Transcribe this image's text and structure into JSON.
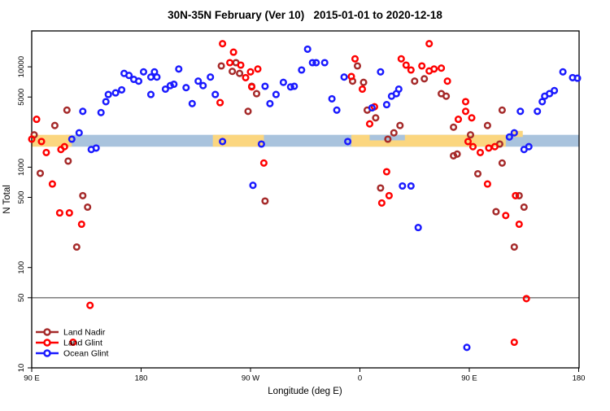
{
  "window": {
    "title": "30N-35N February (Ver 10)   2015-01-01 to 2020-12-18"
  },
  "chart_data": {
    "type": "scatter",
    "title": "30N-35N February (Ver 10)   2015-01-01 to 2020-12-18",
    "xlabel": "Longitude (deg E)",
    "ylabel": "N Total",
    "x_axis": {
      "range_deg_east": [
        90,
        540
      ],
      "ticks": [
        {
          "deg": 90,
          "label": "90 E"
        },
        {
          "deg": 180,
          "label": "180"
        },
        {
          "deg": 270,
          "label": "90 W"
        },
        {
          "deg": 360,
          "label": "0"
        },
        {
          "deg": 450,
          "label": "90 E"
        },
        {
          "deg": 540,
          "label": "180"
        }
      ]
    },
    "y_axis": {
      "scale": "log10",
      "range": [
        10,
        23000
      ],
      "ticks": [
        {
          "value": 10,
          "label": "10"
        },
        {
          "value": 50,
          "label": "50"
        },
        {
          "value": 100,
          "label": "100"
        },
        {
          "value": 500,
          "label": "500"
        },
        {
          "value": 1000,
          "label": "1000"
        },
        {
          "value": 5000,
          "label": "5000"
        },
        {
          "value": 10000,
          "label": "10000"
        }
      ]
    },
    "reference_line": {
      "value": 50,
      "color": "#3a3a3a"
    },
    "bands": {
      "default_value_range": [
        1600,
        2100
      ],
      "segments": [
        {
          "deg_range": [
            118,
            540
          ],
          "color": "#A9C3DD",
          "name": "ocean-band"
        },
        {
          "deg_range": [
            90,
            123
          ],
          "color": "#FBD67F",
          "name": "land-band"
        },
        {
          "deg_range": [
            239,
            281
          ],
          "color": "#FBD67F",
          "name": "land-band"
        },
        {
          "deg_range": [
            353,
            480
          ],
          "color": "#FBD67F",
          "name": "land-band"
        },
        {
          "deg_range": [
            486,
            494
          ],
          "color": "#FBD67F",
          "name": "land-band",
          "value_range": [
            2000,
            2300
          ]
        },
        {
          "deg_range": [
            368,
            397
          ],
          "color": "#A9C3DD",
          "name": "ocean-band",
          "value_range": [
            1850,
            2100
          ]
        }
      ]
    },
    "series": [
      {
        "name": "Land Nadir",
        "color": "#A52A2A",
        "points": [
          [
            92,
            2100
          ],
          [
            109,
            2600
          ],
          [
            119,
            3700
          ],
          [
            120,
            1150
          ],
          [
            97,
            870
          ],
          [
            132,
            520
          ],
          [
            136,
            400
          ],
          [
            127,
            160
          ],
          [
            246,
            10200
          ],
          [
            258,
            11000
          ],
          [
            255,
            9000
          ],
          [
            261,
            8600
          ],
          [
            271,
            6400
          ],
          [
            275,
            5400
          ],
          [
            268,
            3600
          ],
          [
            282,
            460
          ],
          [
            358,
            10200
          ],
          [
            354,
            7200
          ],
          [
            363,
            7000
          ],
          [
            366,
            3700
          ],
          [
            373,
            3100
          ],
          [
            393,
            2600
          ],
          [
            388,
            2200
          ],
          [
            383,
            1900
          ],
          [
            377,
            620
          ],
          [
            405,
            7200
          ],
          [
            413,
            7600
          ],
          [
            427,
            5400
          ],
          [
            431,
            5100
          ],
          [
            437,
            2500
          ],
          [
            451,
            2100
          ],
          [
            437,
            1300
          ],
          [
            440,
            1350
          ],
          [
            465,
            2600
          ],
          [
            475,
            1700
          ],
          [
            477,
            3700
          ],
          [
            477,
            1100
          ],
          [
            457,
            860
          ],
          [
            472,
            360
          ],
          [
            487,
            160
          ],
          [
            491,
            520
          ],
          [
            495,
            400
          ]
        ]
      },
      {
        "name": "Land Glint",
        "color": "#FF0000",
        "points": [
          [
            94,
            3000
          ],
          [
            90,
            1900
          ],
          [
            98,
            1800
          ],
          [
            102,
            1400
          ],
          [
            114,
            1500
          ],
          [
            117,
            1600
          ],
          [
            107,
            680
          ],
          [
            113,
            350
          ],
          [
            121,
            350
          ],
          [
            131,
            270
          ],
          [
            138,
            42
          ],
          [
            124,
            18
          ],
          [
            247,
            17000
          ],
          [
            245,
            4400
          ],
          [
            256,
            14000
          ],
          [
            253,
            11000
          ],
          [
            262,
            10400
          ],
          [
            266,
            7800
          ],
          [
            270,
            8900
          ],
          [
            276,
            9500
          ],
          [
            271,
            6300
          ],
          [
            281,
            1100
          ],
          [
            356,
            12000
          ],
          [
            353,
            8000
          ],
          [
            362,
            6000
          ],
          [
            372,
            4000
          ],
          [
            368,
            2700
          ],
          [
            394,
            12000
          ],
          [
            398,
            10400
          ],
          [
            402,
            9300
          ],
          [
            382,
            900
          ],
          [
            384,
            520
          ],
          [
            378,
            440
          ],
          [
            417,
            17000
          ],
          [
            411,
            10200
          ],
          [
            417,
            9100
          ],
          [
            421,
            9500
          ],
          [
            427,
            9700
          ],
          [
            432,
            7200
          ],
          [
            447,
            4500
          ],
          [
            447,
            3600
          ],
          [
            441,
            3000
          ],
          [
            452,
            3100
          ],
          [
            449,
            1800
          ],
          [
            453,
            1600
          ],
          [
            459,
            1400
          ],
          [
            466,
            1550
          ],
          [
            471,
            1600
          ],
          [
            465,
            680
          ],
          [
            480,
            330
          ],
          [
            488,
            520
          ],
          [
            487,
            18
          ],
          [
            491,
            270
          ],
          [
            497,
            49
          ]
        ]
      },
      {
        "name": "Ocean Glint",
        "color": "#1A1AFF",
        "points": [
          [
            123,
            1900
          ],
          [
            129,
            2200
          ],
          [
            132,
            3600
          ],
          [
            147,
            3500
          ],
          [
            151,
            4500
          ],
          [
            153,
            5300
          ],
          [
            159,
            5500
          ],
          [
            164,
            5900
          ],
          [
            166,
            8600
          ],
          [
            139,
            1500
          ],
          [
            143,
            1550
          ],
          [
            170,
            8200
          ],
          [
            174,
            7500
          ],
          [
            178,
            7200
          ],
          [
            182,
            8900
          ],
          [
            188,
            7900
          ],
          [
            191,
            8900
          ],
          [
            193,
            7900
          ],
          [
            188,
            5300
          ],
          [
            200,
            6000
          ],
          [
            204,
            6500
          ],
          [
            207,
            6700
          ],
          [
            211,
            9500
          ],
          [
            217,
            6200
          ],
          [
            222,
            4300
          ],
          [
            227,
            7200
          ],
          [
            231,
            6500
          ],
          [
            237,
            7900
          ],
          [
            241,
            5300
          ],
          [
            247,
            1800
          ],
          [
            282,
            6400
          ],
          [
            291,
            5300
          ],
          [
            286,
            4300
          ],
          [
            297,
            7000
          ],
          [
            303,
            6300
          ],
          [
            306,
            6400
          ],
          [
            317,
            15000
          ],
          [
            312,
            9300
          ],
          [
            321,
            11000
          ],
          [
            324,
            11000
          ],
          [
            279,
            1700
          ],
          [
            272,
            660
          ],
          [
            331,
            11000
          ],
          [
            347,
            7900
          ],
          [
            377,
            8900
          ],
          [
            337,
            4800
          ],
          [
            341,
            3700
          ],
          [
            370,
            3900
          ],
          [
            382,
            4200
          ],
          [
            386,
            5100
          ],
          [
            390,
            5400
          ],
          [
            392,
            6000
          ],
          [
            350,
            1800
          ],
          [
            395,
            650
          ],
          [
            402,
            650
          ],
          [
            408,
            250
          ],
          [
            483,
            2000
          ],
          [
            487,
            2200
          ],
          [
            448,
            16
          ],
          [
            527,
            8900
          ],
          [
            535,
            7800
          ],
          [
            539,
            7700
          ],
          [
            520,
            5800
          ],
          [
            516,
            5400
          ],
          [
            512,
            5100
          ],
          [
            510,
            4500
          ],
          [
            506,
            3600
          ],
          [
            492,
            3600
          ],
          [
            495,
            1500
          ],
          [
            499,
            1600
          ]
        ]
      }
    ],
    "legend": {
      "position": "bottom-left",
      "entries": [
        {
          "label": "Land Nadir",
          "color": "#A52A2A"
        },
        {
          "label": "Land Glint",
          "color": "#FF0000"
        },
        {
          "label": "Ocean Glint",
          "color": "#1A1AFF"
        }
      ]
    }
  }
}
